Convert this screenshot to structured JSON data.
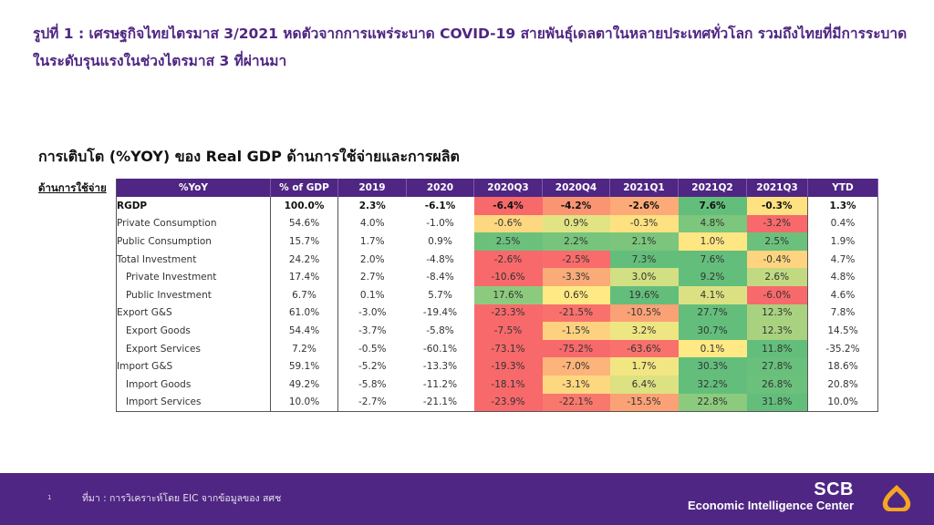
{
  "title": "รูปที่ 1 : เศรษฐกิจไทยไตรมาส 3/2021 หดตัวจากการแพร่ระบาด COVID-19 สายพันธุ์เดลตาในหลายประเทศทั่วโลก รวมถึงไทยที่มีการระบาดในระดับรุนแรงในช่วงไตรมาส 3 ที่ผ่านมา",
  "subtitle": "การเติบโต (%YOY) ของ Real GDP ด้านการใช้จ่ายและการผลิต",
  "side_label": "ด้านการใช้จ่าย",
  "table": {
    "headers": [
      "%YoY",
      "% of GDP",
      "2019",
      "2020",
      "2020Q3",
      "2020Q4",
      "2021Q1",
      "2021Q2",
      "2021Q3",
      "YTD"
    ],
    "rows": [
      {
        "label": "RGDP",
        "indent": false,
        "bold": true,
        "values": [
          "100.0%",
          "2.3%",
          "-6.1%",
          "-6.4%",
          "-4.2%",
          "-2.6%",
          "7.6%",
          "-0.3%",
          "1.3%"
        ]
      },
      {
        "label": "Private Consumption",
        "indent": false,
        "bold": false,
        "values": [
          "54.6%",
          "4.0%",
          "-1.0%",
          "-0.6%",
          "0.9%",
          "-0.3%",
          "4.8%",
          "-3.2%",
          "0.4%"
        ]
      },
      {
        "label": "Public Consumption",
        "indent": false,
        "bold": false,
        "values": [
          "15.7%",
          "1.7%",
          "0.9%",
          "2.5%",
          "2.2%",
          "2.1%",
          "1.0%",
          "2.5%",
          "1.9%"
        ]
      },
      {
        "label": "Total Investment",
        "indent": false,
        "bold": false,
        "values": [
          "24.2%",
          "2.0%",
          "-4.8%",
          "-2.6%",
          "-2.5%",
          "7.3%",
          "7.6%",
          "-0.4%",
          "4.7%"
        ]
      },
      {
        "label": "Private Investment",
        "indent": true,
        "bold": false,
        "values": [
          "17.4%",
          "2.7%",
          "-8.4%",
          "-10.6%",
          "-3.3%",
          "3.0%",
          "9.2%",
          "2.6%",
          "4.8%"
        ]
      },
      {
        "label": "Public Investment",
        "indent": true,
        "bold": false,
        "values": [
          "6.7%",
          "0.1%",
          "5.7%",
          "17.6%",
          "0.6%",
          "19.6%",
          "4.1%",
          "-6.0%",
          "4.6%"
        ]
      },
      {
        "label": "Export G&S",
        "indent": false,
        "bold": false,
        "values": [
          "61.0%",
          "-3.0%",
          "-19.4%",
          "-23.3%",
          "-21.5%",
          "-10.5%",
          "27.7%",
          "12.3%",
          "7.8%"
        ]
      },
      {
        "label": "Export Goods",
        "indent": true,
        "bold": false,
        "values": [
          "54.4%",
          "-3.7%",
          "-5.8%",
          "-7.5%",
          "-1.5%",
          "3.2%",
          "30.7%",
          "12.3%",
          "14.5%"
        ]
      },
      {
        "label": "Export Services",
        "indent": true,
        "bold": false,
        "values": [
          "7.2%",
          "-0.5%",
          "-60.1%",
          "-73.1%",
          "-75.2%",
          "-63.6%",
          "0.1%",
          "11.8%",
          "-35.2%"
        ]
      },
      {
        "label": "Import G&S",
        "indent": false,
        "bold": false,
        "values": [
          "59.1%",
          "-5.2%",
          "-13.3%",
          "-19.3%",
          "-7.0%",
          "1.7%",
          "30.3%",
          "27.8%",
          "18.6%"
        ]
      },
      {
        "label": "Import Goods",
        "indent": true,
        "bold": false,
        "values": [
          "49.2%",
          "-5.8%",
          "-11.2%",
          "-18.1%",
          "-3.1%",
          "6.4%",
          "32.2%",
          "26.8%",
          "20.8%"
        ]
      },
      {
        "label": "Import Services",
        "indent": true,
        "bold": false,
        "values": [
          "10.0%",
          "-2.7%",
          "-21.1%",
          "-23.9%",
          "-22.1%",
          "-15.5%",
          "22.8%",
          "31.8%",
          "10.0%"
        ]
      }
    ],
    "heat_colors": [
      [
        "#f8696b",
        "#fa9473",
        "#fcaa77",
        "#63be7b",
        "#fee282"
      ],
      [
        "#fed880",
        "#e2e383",
        "#fee282",
        "#7cc67d",
        "#f8696b"
      ],
      [
        "#6bc17c",
        "#77c47d",
        "#7cc57d",
        "#fee683",
        "#6bc17c"
      ],
      [
        "#f8696b",
        "#f96c6b",
        "#63be7b",
        "#63be7b",
        "#fed480"
      ],
      [
        "#f8696b",
        "#fbab77",
        "#d2df82",
        "#63be7b",
        "#c1da81"
      ],
      [
        "#8ccb7e",
        "#ffe984",
        "#63be7b",
        "#dbe182",
        "#f8696b"
      ],
      [
        "#f8696b",
        "#f8716c",
        "#fba176",
        "#63be7b",
        "#a8d27f"
      ],
      [
        "#f8696b",
        "#fdd17f",
        "#eee583",
        "#63be7b",
        "#a8d27f"
      ],
      [
        "#f8696b",
        "#f8696b",
        "#f9716c",
        "#ffe984",
        "#63be7b"
      ],
      [
        "#f8696b",
        "#fcb47a",
        "#f2e683",
        "#63be7b",
        "#68c07c"
      ],
      [
        "#f8696b",
        "#fed880",
        "#dce182",
        "#63be7b",
        "#6bc17c"
      ],
      [
        "#f8696b",
        "#f9786d",
        "#fba176",
        "#8ccb7e",
        "#63be7b"
      ]
    ]
  },
  "footer": {
    "page_number": "1",
    "source": "ที่มา : การวิเคราะห์โดย EIC จากข้อมูลของ สศช",
    "logo_brand": "SCB",
    "logo_sub": "Economic Intelligence Center",
    "brand_color": "#4f2683",
    "logo_icon": "scb-bell-icon",
    "logo_icon_color": "#f5a623"
  }
}
